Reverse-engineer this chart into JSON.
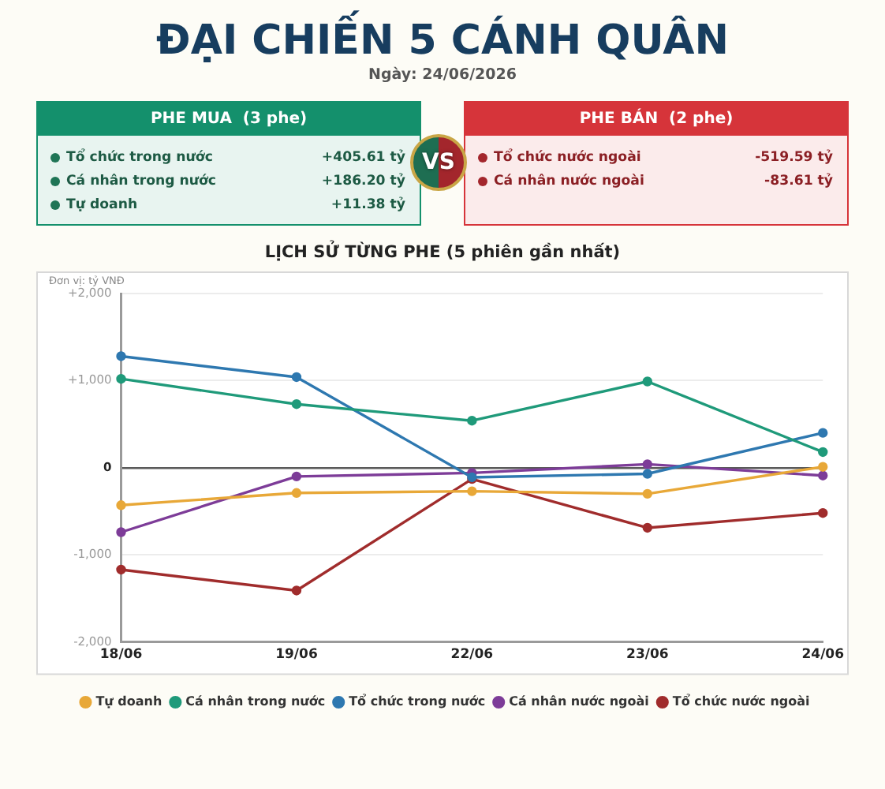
{
  "chart_data": [
    {
      "type": "other",
      "title": "ĐẠI CHIẾN 5 CÁNH QUÂN",
      "subtitle": "Ngày: 24/06/2026",
      "annotations": [
        "VS"
      ]
    },
    {
      "type": "other",
      "title": "PHE MUA  (3 phe)",
      "color": "#14906c",
      "categories": [
        "Tổ chức trong nước",
        "Cá nhân trong nước",
        "Tự doanh"
      ],
      "values": [
        405.61,
        186.2,
        11.38
      ],
      "value_labels": [
        "+405.61 tỷ",
        "+186.20 tỷ",
        "+11.38 tỷ"
      ]
    },
    {
      "type": "other",
      "title": "PHE BÁN  (2 phe)",
      "color": "#d6343a",
      "categories": [
        "Tổ chức nước ngoài",
        "Cá nhân nước ngoài"
      ],
      "values": [
        -519.59,
        -83.61
      ],
      "value_labels": [
        "-519.59 tỷ",
        "-83.61 tỷ"
      ]
    },
    {
      "type": "line",
      "title": "LỊCH SỬ TỪNG PHE (5 phiên gần nhất)",
      "annotations": [
        "Đơn vị: tỷ VNĐ"
      ],
      "categories": [
        "18/06",
        "19/06",
        "22/06",
        "23/06",
        "24/06"
      ],
      "series": [
        {
          "name": "Tự doanh",
          "color": "#e8a838",
          "values": [
            -430,
            -290,
            -270,
            -300,
            10
          ]
        },
        {
          "name": "Cá nhân trong nước",
          "color": "#1f9a7a",
          "values": [
            1020,
            730,
            540,
            990,
            180
          ]
        },
        {
          "name": "Tổ chức trong nước",
          "color": "#2e78b0",
          "values": [
            1280,
            1040,
            -110,
            -70,
            400
          ]
        },
        {
          "name": "Cá nhân nước ngoài",
          "color": "#7d3c98",
          "values": [
            -740,
            -100,
            -60,
            40,
            -90
          ]
        },
        {
          "name": "Tổ chức nước ngoài",
          "color": "#a02c2c",
          "values": [
            -1170,
            -1410,
            -130,
            -690,
            -520
          ]
        }
      ],
      "ylim": [
        -2000,
        2000
      ],
      "yticks": [
        {
          "value": -2000,
          "label": "-2,000"
        },
        {
          "value": -1000,
          "label": "-1,000"
        },
        0,
        {
          "value": 1000,
          "label": "+1,000"
        },
        {
          "value": 2000,
          "label": "+2,000"
        }
      ],
      "grid": "y",
      "legend": "bottom",
      "marker": "circle",
      "line_style": "solid"
    }
  ]
}
